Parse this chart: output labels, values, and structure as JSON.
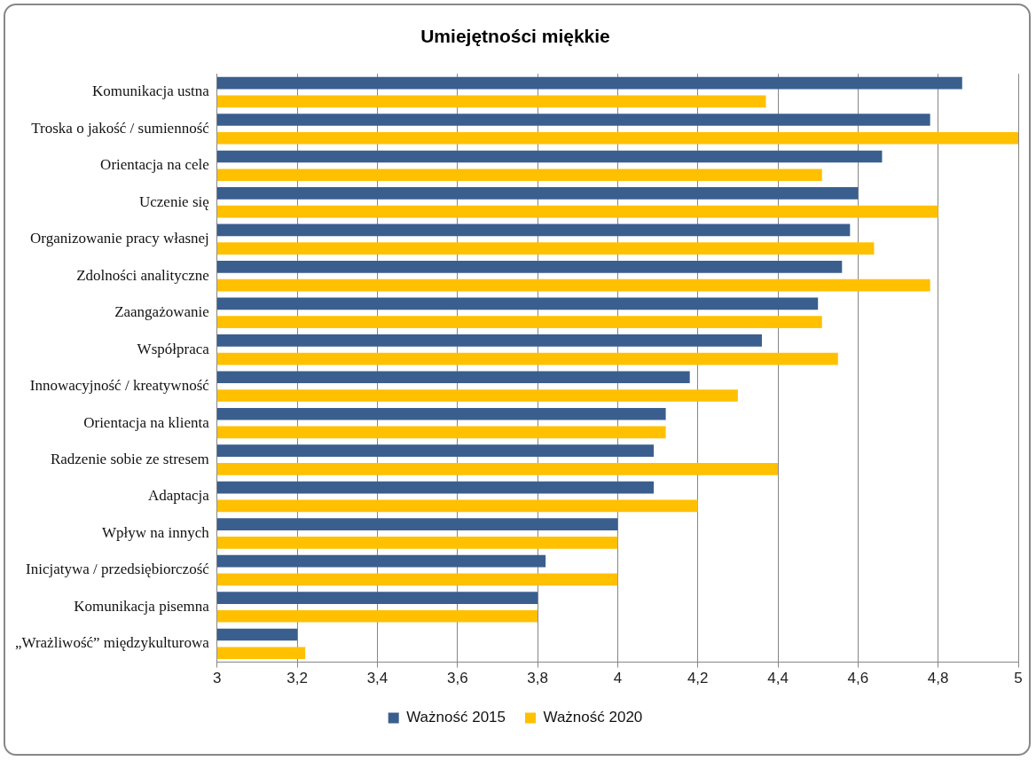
{
  "chart_data": {
    "type": "bar",
    "orientation": "horizontal",
    "title": "Umiejętności miękkie",
    "categories": [
      "Komunikacja ustna",
      "Troska o jakość / sumienność",
      "Orientacja na cele",
      "Uczenie się",
      "Organizowanie pracy własnej",
      "Zdolności analityczne",
      "Zaangażowanie",
      "Współpraca",
      "Innowacyjność / kreatywność",
      "Orientacja na klienta",
      "Radzenie sobie ze stresem",
      "Adaptacja",
      "Wpływ na innych",
      "Inicjatywa / przedsiębiorczość",
      "Komunikacja pisemna",
      "„Wrażliwość” międzykulturowa"
    ],
    "series": [
      {
        "name": "Ważność 2015",
        "color": "#3a5f8e",
        "values": [
          4.86,
          4.78,
          4.66,
          4.6,
          4.58,
          4.56,
          4.5,
          4.36,
          4.18,
          4.12,
          4.09,
          4.09,
          4.0,
          3.82,
          3.8,
          3.2
        ]
      },
      {
        "name": "Ważność 2020",
        "color": "#ffc000",
        "values": [
          4.37,
          5.0,
          4.51,
          4.8,
          4.64,
          4.78,
          4.51,
          4.55,
          4.3,
          4.12,
          4.4,
          4.2,
          4.0,
          4.0,
          3.8,
          3.22
        ]
      }
    ],
    "xlim": [
      3,
      5
    ],
    "xticks": [
      3,
      {
        "value": 3.2,
        "label": "3,2"
      },
      {
        "value": 3.4,
        "label": "3,4"
      },
      {
        "value": 3.6,
        "label": "3,6"
      },
      {
        "value": 3.8,
        "label": "3,8"
      },
      4,
      {
        "value": 4.2,
        "label": "4,2"
      },
      {
        "value": 4.4,
        "label": "4,4"
      },
      {
        "value": 4.6,
        "label": "4,6"
      },
      {
        "value": 4.8,
        "label": "4,8"
      },
      5
    ],
    "grid": "x",
    "legend": "bottom"
  }
}
